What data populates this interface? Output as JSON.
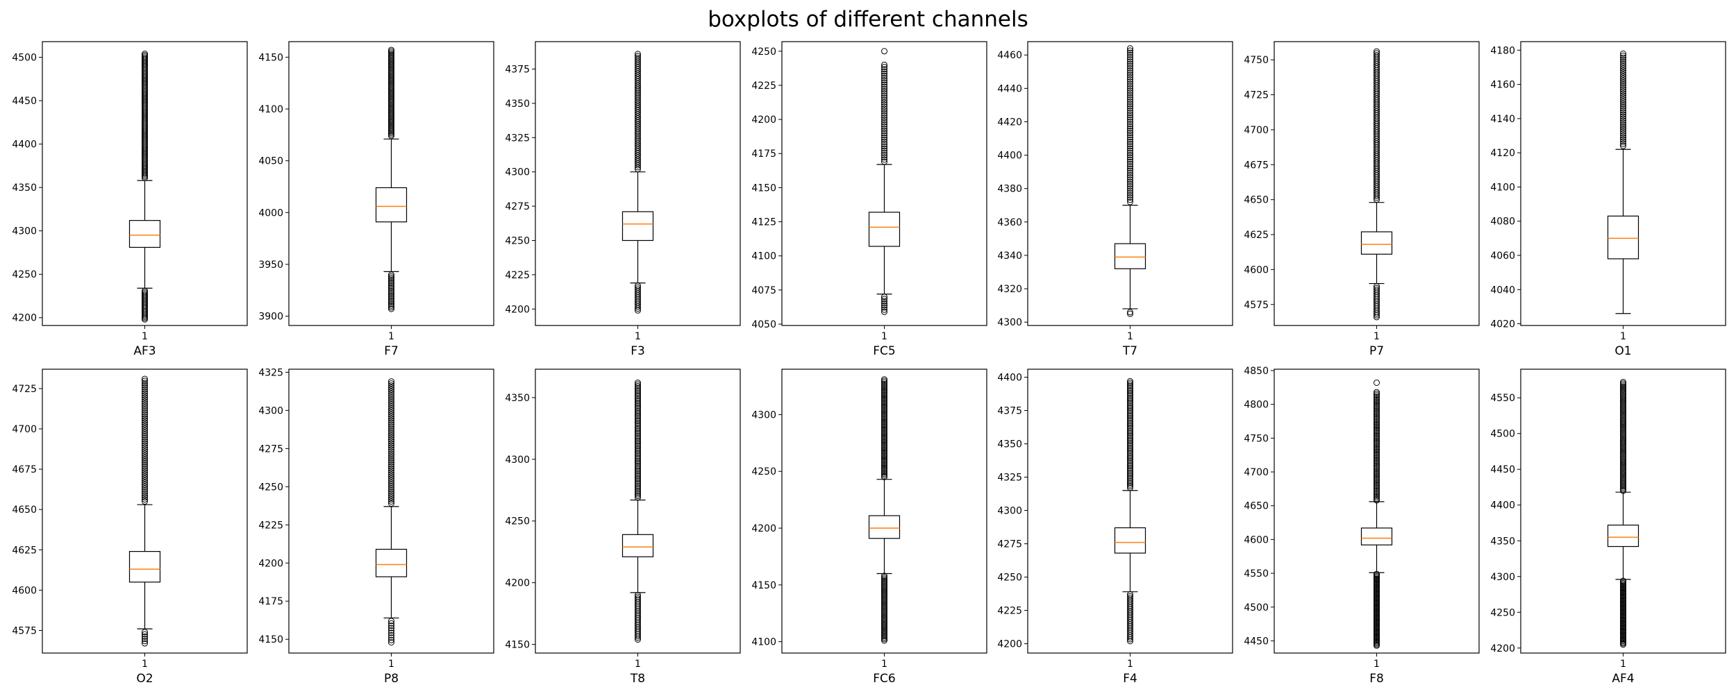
{
  "figure": {
    "title": "boxplots of different channels"
  },
  "chart_data": [
    {
      "type": "box",
      "xlabel": "AF3",
      "category": "1",
      "ylim": [
        4191,
        4518
      ],
      "yticks": [
        4200,
        4250,
        4300,
        4350,
        4400,
        4450,
        4500
      ],
      "q1": 4281,
      "median": 4295,
      "q3": 4312,
      "whisker_low": 4234,
      "whisker_high": 4358,
      "outliers_low": {
        "from": 4198,
        "to": 4231,
        "n": 22
      },
      "outliers_high": {
        "from": 4361,
        "to": 4504,
        "n": 90
      }
    },
    {
      "type": "box",
      "xlabel": "F7",
      "category": "1",
      "ylim": [
        3891,
        4165
      ],
      "yticks": [
        3900,
        3950,
        4000,
        4050,
        4100,
        4150
      ],
      "q1": 3991,
      "median": 4006,
      "q3": 4024,
      "whisker_low": 3943,
      "whisker_high": 4071,
      "outliers_low": {
        "from": 3907,
        "to": 3940,
        "n": 22
      },
      "outliers_high": {
        "from": 4074,
        "to": 4157,
        "n": 60
      }
    },
    {
      "type": "box",
      "xlabel": "F3",
      "category": "1",
      "ylim": [
        4188,
        4395
      ],
      "yticks": [
        4200,
        4225,
        4250,
        4275,
        4300,
        4325,
        4350,
        4375
      ],
      "q1": 4250,
      "median": 4262,
      "q3": 4271,
      "whisker_low": 4219,
      "whisker_high": 4300,
      "outliers_low": {
        "from": 4199,
        "to": 4217,
        "n": 14
      },
      "outliers_high": {
        "from": 4302,
        "to": 4386,
        "n": 60
      }
    },
    {
      "type": "box",
      "xlabel": "FC5",
      "category": "1",
      "ylim": [
        4049,
        4257
      ],
      "yticks": [
        4050,
        4075,
        4100,
        4125,
        4150,
        4175,
        4200,
        4225,
        4250
      ],
      "q1": 4107,
      "median": 4121,
      "q3": 4132,
      "whisker_low": 4072,
      "whisker_high": 4167,
      "outliers_low": {
        "from": 4059,
        "to": 4070,
        "n": 8
      },
      "outliers_high": {
        "from": 4169,
        "to": 4240,
        "n": 45
      },
      "outliers_extra": [
        4250
      ]
    },
    {
      "type": "box",
      "xlabel": "T7",
      "category": "1",
      "ylim": [
        4298,
        4468
      ],
      "yticks": [
        4300,
        4320,
        4340,
        4360,
        4380,
        4400,
        4420,
        4440,
        4460
      ],
      "q1": 4332,
      "median": 4339,
      "q3": 4347,
      "whisker_low": 4308,
      "whisker_high": 4370,
      "outliers_low": {
        "from": 4305,
        "to": 4306,
        "n": 2
      },
      "outliers_high": {
        "from": 4372,
        "to": 4464,
        "n": 70
      }
    },
    {
      "type": "box",
      "xlabel": "P7",
      "category": "1",
      "ylim": [
        4560,
        4763
      ],
      "yticks": [
        4575,
        4600,
        4625,
        4650,
        4675,
        4700,
        4725,
        4750
      ],
      "q1": 4611,
      "median": 4618,
      "q3": 4627,
      "whisker_low": 4590,
      "whisker_high": 4648,
      "outliers_low": {
        "from": 4566,
        "to": 4588,
        "n": 18
      },
      "outliers_high": {
        "from": 4650,
        "to": 4756,
        "n": 80
      }
    },
    {
      "type": "box",
      "xlabel": "O1",
      "category": "1",
      "ylim": [
        4019,
        4185
      ],
      "yticks": [
        4020,
        4040,
        4060,
        4080,
        4100,
        4120,
        4140,
        4160,
        4180
      ],
      "q1": 4058,
      "median": 4070,
      "q3": 4083,
      "whisker_low": 4026,
      "whisker_high": 4122,
      "outliers_low": {
        "from": 4026,
        "to": 4026,
        "n": 0
      },
      "outliers_high": {
        "from": 4124,
        "to": 4178,
        "n": 45
      }
    },
    {
      "type": "box",
      "xlabel": "O2",
      "category": "1",
      "ylim": [
        4561,
        4737
      ],
      "yticks": [
        4575,
        4600,
        4625,
        4650,
        4675,
        4700,
        4725
      ],
      "q1": 4605,
      "median": 4613,
      "q3": 4624,
      "whisker_low": 4576,
      "whisker_high": 4653,
      "outliers_low": {
        "from": 4567,
        "to": 4574,
        "n": 6
      },
      "outliers_high": {
        "from": 4655,
        "to": 4731,
        "n": 60
      }
    },
    {
      "type": "box",
      "xlabel": "P8",
      "category": "1",
      "ylim": [
        4141,
        4327
      ],
      "yticks": [
        4150,
        4175,
        4200,
        4225,
        4250,
        4275,
        4300,
        4325
      ],
      "q1": 4191,
      "median": 4199,
      "q3": 4209,
      "whisker_low": 4164,
      "whisker_high": 4237,
      "outliers_low": {
        "from": 4148,
        "to": 4162,
        "n": 10
      },
      "outliers_high": {
        "from": 4239,
        "to": 4319,
        "n": 60
      }
    },
    {
      "type": "box",
      "xlabel": "T8",
      "category": "1",
      "ylim": [
        4143,
        4373
      ],
      "yticks": [
        4150,
        4200,
        4250,
        4300,
        4350
      ],
      "q1": 4221,
      "median": 4229,
      "q3": 4239,
      "whisker_low": 4192,
      "whisker_high": 4267,
      "outliers_low": {
        "from": 4154,
        "to": 4190,
        "n": 26
      },
      "outliers_high": {
        "from": 4269,
        "to": 4362,
        "n": 70
      }
    },
    {
      "type": "box",
      "xlabel": "FC6",
      "category": "1",
      "ylim": [
        4090,
        4340
      ],
      "yticks": [
        4100,
        4150,
        4200,
        4250,
        4300
      ],
      "q1": 4191,
      "median": 4200,
      "q3": 4211,
      "whisker_low": 4160,
      "whisker_high": 4243,
      "outliers_low": {
        "from": 4101,
        "to": 4158,
        "n": 45
      },
      "outliers_high": {
        "from": 4245,
        "to": 4331,
        "n": 65
      }
    },
    {
      "type": "box",
      "xlabel": "F4",
      "category": "1",
      "ylim": [
        4193,
        4406
      ],
      "yticks": [
        4200,
        4225,
        4250,
        4275,
        4300,
        4325,
        4350,
        4375,
        4400
      ],
      "q1": 4268,
      "median": 4276,
      "q3": 4287,
      "whisker_low": 4239,
      "whisker_high": 4315,
      "outliers_low": {
        "from": 4202,
        "to": 4237,
        "n": 26
      },
      "outliers_high": {
        "from": 4317,
        "to": 4397,
        "n": 65
      }
    },
    {
      "type": "box",
      "xlabel": "F8",
      "category": "1",
      "ylim": [
        4432,
        4852
      ],
      "yticks": [
        4450,
        4500,
        4550,
        4600,
        4650,
        4700,
        4750,
        4800,
        4850
      ],
      "q1": 4592,
      "median": 4602,
      "q3": 4617,
      "whisker_low": 4551,
      "whisker_high": 4656,
      "outliers_low": {
        "from": 4443,
        "to": 4549,
        "n": 60
      },
      "outliers_high": {
        "from": 4658,
        "to": 4818,
        "n": 70
      },
      "outliers_extra": [
        4832
      ]
    },
    {
      "type": "box",
      "xlabel": "AF4",
      "category": "1",
      "ylim": [
        4193,
        4590
      ],
      "yticks": [
        4200,
        4250,
        4300,
        4350,
        4400,
        4450,
        4500,
        4550
      ],
      "q1": 4342,
      "median": 4355,
      "q3": 4372,
      "whisker_low": 4296,
      "whisker_high": 4418,
      "outliers_low": {
        "from": 4205,
        "to": 4294,
        "n": 55
      },
      "outliers_high": {
        "from": 4420,
        "to": 4572,
        "n": 75
      }
    }
  ],
  "colors": {
    "median": "#ff7f0e",
    "box": "#000000",
    "background": "#ffffff"
  }
}
